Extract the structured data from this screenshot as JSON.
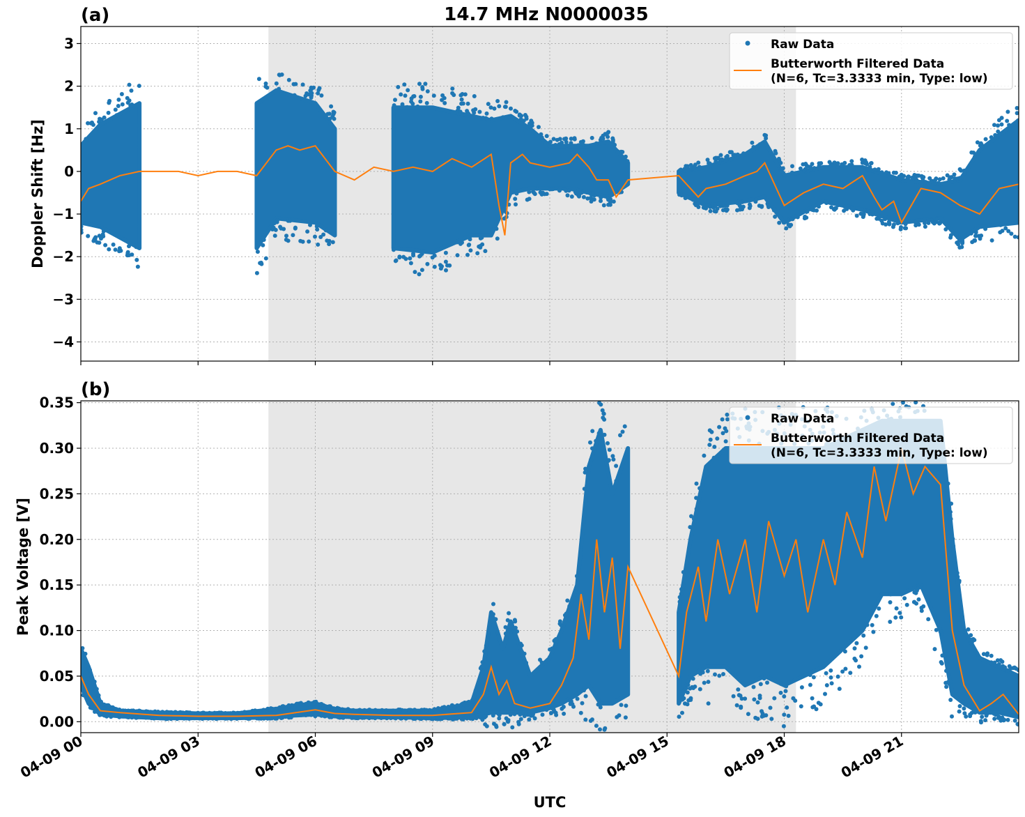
{
  "figure": {
    "title": "14.7 MHz N0000035",
    "xlabel": "UTC"
  },
  "chart_data": [
    {
      "type": "scatter",
      "panel_label": "(a)",
      "ylabel": "Doppler Shift [Hz]",
      "xlim_hours": [
        0,
        24
      ],
      "ylim": [
        -4.45,
        3.4
      ],
      "yticks": [
        -4,
        -3,
        -2,
        -1,
        0,
        1,
        2,
        3
      ],
      "ytick_labels": [
        "−4",
        "−3",
        "−2",
        "−1",
        "0",
        "1",
        "2",
        "3"
      ],
      "xticks_hours": [
        0,
        3,
        6,
        9,
        12,
        15,
        18,
        21
      ],
      "xtick_labels": [
        "04-09 00",
        "04-09 03",
        "04-09 06",
        "04-09 09",
        "04-09 12",
        "04-09 15",
        "04-09 18",
        "04-09 21"
      ],
      "shaded_span_hours": [
        4.8,
        18.3
      ],
      "grid": true,
      "legend_position": "top-right",
      "series": [
        {
          "name": "Raw Data",
          "kind": "scatter",
          "color": "#1f77b4",
          "envelope": {
            "x": [
              0,
              0.5,
              1.5,
              3,
              4.5,
              5,
              6,
              6.5,
              8,
              9,
              10,
              10.5,
              11,
              11.5,
              12,
              12.5,
              13,
              13.5,
              14,
              15.3,
              16,
              17,
              17.5,
              18,
              19,
              20,
              21,
              22,
              22.5,
              23,
              24
            ],
            "lo": [
              -1.2,
              -1.3,
              -1.8,
              -1.8,
              -1.8,
              -1.1,
              -1.2,
              -1.5,
              -1.8,
              -1.9,
              -1.5,
              -1.5,
              -0.5,
              -0.4,
              -0.4,
              -0.4,
              -0.5,
              -0.6,
              -0.3,
              -0.5,
              -0.8,
              -0.7,
              -0.6,
              -1.2,
              -0.7,
              -0.9,
              -1.2,
              -1.1,
              -1.6,
              -1.3,
              -1.2
            ],
            "hi": [
              0.6,
              1.1,
              1.6,
              1.6,
              1.6,
              1.9,
              1.6,
              1.0,
              1.5,
              1.5,
              1.3,
              1.2,
              1.3,
              1.0,
              0.6,
              0.6,
              0.6,
              0.7,
              0.2,
              0.0,
              0.1,
              0.4,
              0.7,
              -0.1,
              0.1,
              0.1,
              -0.2,
              -0.3,
              -0.2,
              0.5,
              1.2
            ]
          }
        },
        {
          "name": "Butterworth Filtered Data\n(N=6, Tc=3.3333 min, Type: low)",
          "kind": "line",
          "color": "#ff7f0e",
          "x": [
            0,
            0.2,
            0.5,
            1,
            1.5,
            2,
            2.5,
            3,
            3.5,
            4,
            4.5,
            5,
            5.3,
            5.6,
            6,
            6.5,
            7,
            7.5,
            8,
            8.5,
            9,
            9.5,
            10,
            10.5,
            10.7,
            10.85,
            11,
            11.3,
            11.5,
            12,
            12.5,
            12.7,
            13,
            13.2,
            13.5,
            13.7,
            14,
            15.3,
            15.5,
            15.8,
            16,
            16.5,
            17,
            17.3,
            17.5,
            17.8,
            18,
            18.5,
            19,
            19.5,
            20,
            20.3,
            20.5,
            20.8,
            21,
            21.5,
            22,
            22.5,
            23,
            23.5,
            24
          ],
          "y": [
            -0.7,
            -0.4,
            -0.3,
            -0.1,
            0.0,
            0.0,
            0.0,
            -0.1,
            0.0,
            0.0,
            -0.1,
            0.5,
            0.6,
            0.5,
            0.6,
            0.0,
            -0.2,
            0.1,
            0.0,
            0.1,
            0.0,
            0.3,
            0.1,
            0.4,
            -0.8,
            -1.5,
            0.2,
            0.4,
            0.2,
            0.1,
            0.2,
            0.4,
            0.1,
            -0.2,
            -0.2,
            -0.6,
            -0.2,
            -0.1,
            -0.3,
            -0.6,
            -0.4,
            -0.3,
            -0.1,
            0.0,
            0.2,
            -0.4,
            -0.8,
            -0.5,
            -0.3,
            -0.4,
            -0.1,
            -0.6,
            -0.9,
            -0.7,
            -1.2,
            -0.4,
            -0.5,
            -0.8,
            -1.0,
            -0.4,
            -0.3
          ]
        }
      ]
    },
    {
      "type": "scatter",
      "panel_label": "(b)",
      "ylabel": "Peak Voltage [V]",
      "xlim_hours": [
        0,
        24
      ],
      "ylim": [
        -0.012,
        0.352
      ],
      "yticks": [
        0.0,
        0.05,
        0.1,
        0.15,
        0.2,
        0.25,
        0.3,
        0.35
      ],
      "ytick_labels": [
        "0.00",
        "0.05",
        "0.10",
        "0.15",
        "0.20",
        "0.25",
        "0.30",
        "0.35"
      ],
      "xticks_hours": [
        0,
        3,
        6,
        9,
        12,
        15,
        18,
        21
      ],
      "xtick_labels": [
        "04-09 00",
        "04-09 03",
        "04-09 06",
        "04-09 09",
        "04-09 12",
        "04-09 15",
        "04-09 18",
        "04-09 21"
      ],
      "shaded_span_hours": [
        4.8,
        18.3
      ],
      "grid": true,
      "legend_position": "top-right",
      "series": [
        {
          "name": "Raw Data",
          "kind": "scatter",
          "color": "#1f77b4",
          "envelope": {
            "x": [
              0,
              0.2,
              0.5,
              1,
              2,
              3,
              4,
              5,
              5.5,
              6,
              6.5,
              7,
              8,
              9,
              10,
              10.3,
              10.5,
              10.8,
              11,
              11.5,
              12,
              12.3,
              12.7,
              13,
              13.3,
              13.6,
              14,
              15.3,
              15.6,
              16,
              16.5,
              17,
              17.5,
              18,
              18.5,
              19,
              19.5,
              20,
              20.5,
              21,
              21.5,
              22,
              22.3,
              22.6,
              23,
              23.5,
              24
            ],
            "lo": [
              0.04,
              0.02,
              0.008,
              0.006,
              0.004,
              0.004,
              0.004,
              0.005,
              0.007,
              0.008,
              0.006,
              0.005,
              0.005,
              0.004,
              0.005,
              0.008,
              0.01,
              0.01,
              0.01,
              0.01,
              0.015,
              0.02,
              0.03,
              0.04,
              0.02,
              0.02,
              0.03,
              0.02,
              0.05,
              0.06,
              0.06,
              0.04,
              0.05,
              0.04,
              0.05,
              0.06,
              0.08,
              0.1,
              0.14,
              0.14,
              0.15,
              0.1,
              0.03,
              0.02,
              0.01,
              0.01,
              0.005
            ],
            "hi": [
              0.08,
              0.06,
              0.02,
              0.012,
              0.01,
              0.009,
              0.009,
              0.014,
              0.018,
              0.02,
              0.014,
              0.012,
              0.012,
              0.012,
              0.02,
              0.06,
              0.12,
              0.08,
              0.11,
              0.05,
              0.07,
              0.1,
              0.15,
              0.28,
              0.32,
              0.25,
              0.3,
              0.12,
              0.2,
              0.28,
              0.3,
              0.3,
              0.3,
              0.3,
              0.3,
              0.3,
              0.31,
              0.32,
              0.33,
              0.33,
              0.33,
              0.33,
              0.2,
              0.1,
              0.07,
              0.06,
              0.05
            ]
          }
        },
        {
          "name": "Butterworth Filtered Data\n(N=6, Tc=3.3333 min, Type: low)",
          "kind": "line",
          "color": "#ff7f0e",
          "x": [
            0,
            0.2,
            0.5,
            1,
            2,
            3,
            4,
            5,
            5.5,
            6,
            6.5,
            7,
            8,
            9,
            10,
            10.3,
            10.5,
            10.7,
            10.9,
            11.1,
            11.5,
            12,
            12.3,
            12.6,
            12.8,
            13,
            13.2,
            13.4,
            13.6,
            13.8,
            14,
            15.3,
            15.5,
            15.8,
            16,
            16.3,
            16.6,
            17,
            17.3,
            17.6,
            18,
            18.3,
            18.6,
            19,
            19.3,
            19.6,
            20,
            20.3,
            20.6,
            21,
            21.3,
            21.6,
            22,
            22.3,
            22.6,
            23,
            23.3,
            23.6,
            24
          ],
          "y": [
            0.05,
            0.03,
            0.012,
            0.01,
            0.007,
            0.006,
            0.006,
            0.007,
            0.01,
            0.013,
            0.009,
            0.008,
            0.007,
            0.007,
            0.01,
            0.03,
            0.06,
            0.03,
            0.045,
            0.02,
            0.015,
            0.02,
            0.04,
            0.07,
            0.14,
            0.09,
            0.2,
            0.12,
            0.18,
            0.08,
            0.17,
            0.05,
            0.12,
            0.17,
            0.11,
            0.2,
            0.14,
            0.2,
            0.12,
            0.22,
            0.16,
            0.2,
            0.12,
            0.2,
            0.15,
            0.23,
            0.18,
            0.28,
            0.22,
            0.3,
            0.25,
            0.28,
            0.26,
            0.1,
            0.04,
            0.012,
            0.02,
            0.03,
            0.008
          ]
        }
      ]
    }
  ]
}
